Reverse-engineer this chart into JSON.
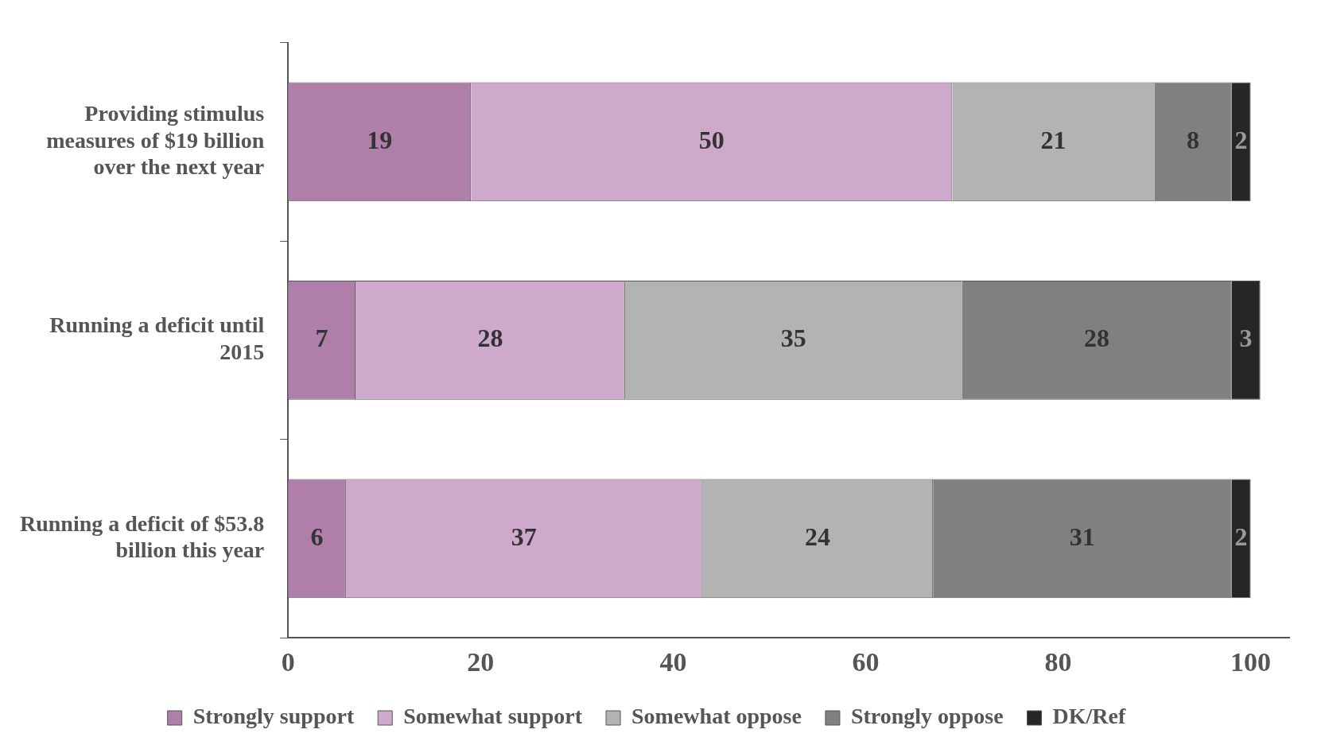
{
  "chart_data": {
    "type": "bar",
    "orientation": "horizontal",
    "stacked": true,
    "data_labels": true,
    "legend": "bottom",
    "grid": false,
    "categories": [
      "Providing stimulus measures of $19 billion over the next year",
      "Running a deficit until 2015",
      "Running a deficit of $53.8 billion this year"
    ],
    "xlim": [
      0,
      104
    ],
    "xticks": [
      0,
      20,
      40,
      60,
      80,
      100
    ],
    "series": [
      {
        "name": "Strongly support",
        "color": "#b07fa9",
        "values": [
          19,
          7,
          6
        ]
      },
      {
        "name": "Somewhat support",
        "color": "#cfa9cb",
        "values": [
          50,
          28,
          37
        ]
      },
      {
        "name": "Somewhat oppose",
        "color": "#b3b3b3",
        "values": [
          21,
          35,
          24
        ]
      },
      {
        "name": "Strongly oppose",
        "color": "#808080",
        "values": [
          8,
          28,
          31
        ]
      },
      {
        "name": "DK/Ref",
        "color": "#262626",
        "values": [
          2,
          3,
          2
        ]
      }
    ]
  }
}
